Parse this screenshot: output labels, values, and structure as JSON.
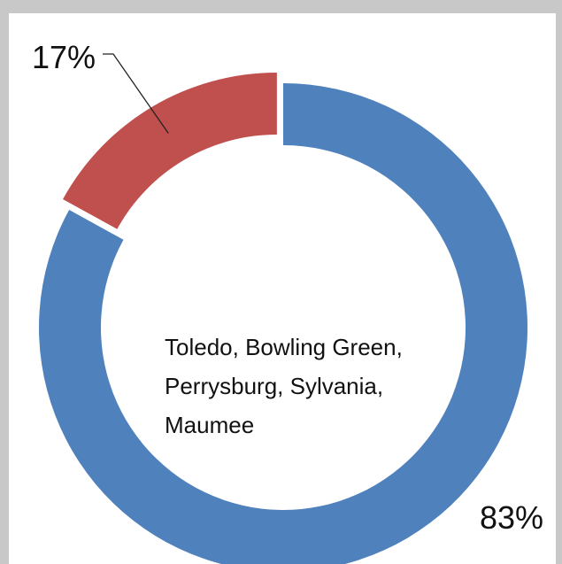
{
  "chart_data": {
    "type": "pie",
    "donut": true,
    "slices": [
      {
        "label": "Toledo, Bowling Green, Perrysburg, Sylvania, Maumee",
        "value": 83,
        "display": "83%",
        "color": "#4f81bd"
      },
      {
        "label": "",
        "value": 17,
        "display": "17%",
        "color": "#c0504d"
      }
    ],
    "center_text": [
      "Toledo, Bowling Green,",
      "Perrysburg, Sylvania,",
      "Maumee"
    ]
  }
}
